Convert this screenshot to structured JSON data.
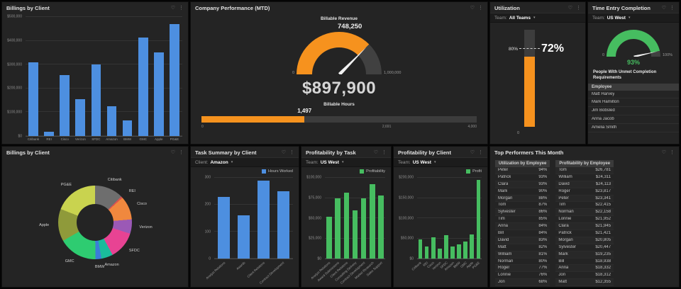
{
  "icons": {
    "favorite": "♡",
    "menu": "⋮",
    "caret": "▾"
  },
  "colors": {
    "page_bg": "#050505",
    "panel_bg": "#242424",
    "accent_blue": "#4d8fe0",
    "accent_orange": "#f6921e",
    "accent_green": "#46bd60"
  },
  "panels": {
    "billings_bar": {
      "title": "Billings by Client"
    },
    "company_performance": {
      "title": "Company Performance (MTD)",
      "gauge_title": "Billable Revenue",
      "gauge_value": "748,250",
      "big_value": "$897,900",
      "hours_title": "Billable Hours"
    },
    "utilization": {
      "title": "Utilization",
      "filter": {
        "label": "Team:",
        "value": "All Teams"
      }
    },
    "time_entry": {
      "title": "Time Entry Completion",
      "filter": {
        "label": "Team:",
        "value": "US West"
      },
      "value": "93%",
      "subheading": "People With Unmet Completion Requirements"
    },
    "billings_donut": {
      "title": "Billings by Client"
    },
    "task_summary": {
      "title": "Task Summary by Client",
      "filter": {
        "label": "Client:",
        "value": "Amazon"
      },
      "legend": "Hours Worked"
    },
    "profit_task": {
      "title": "Profitability by Task",
      "filter": {
        "label": "Team:",
        "value": "US West"
      },
      "legend": "Profitability"
    },
    "profit_client": {
      "title": "Profitability by Client",
      "filter": {
        "label": "Team:",
        "value": "US West"
      },
      "legend": "Profit"
    },
    "top_performers": {
      "title": "Top Performers This Month"
    }
  },
  "chart_data": [
    {
      "id": "billings_bar",
      "type": "bar",
      "title": "Billings by Client",
      "categories": [
        "Citibank",
        "REI",
        "Cisco",
        "Verizon",
        "SFDC",
        "Amazon",
        "BMW",
        "GMC",
        "Apple",
        "PG&E"
      ],
      "values": [
        310000,
        18000,
        255000,
        155000,
        300000,
        125000,
        65000,
        415000,
        350000,
        470000
      ],
      "ymax": 500000,
      "yticks": [
        "$0",
        "$100,000",
        "$200,000",
        "$300,000",
        "$400,000",
        "$500,000"
      ],
      "color": "#4d8fe0",
      "rotate_labels": false
    },
    {
      "id": "billable_revenue_gauge",
      "type": "gauge",
      "title": "Billable Revenue",
      "value": 748250,
      "min": 0,
      "max": 1000000,
      "min_label": "0",
      "max_label": "1,000,000",
      "value_label": "748,250",
      "color": "#f6921e"
    },
    {
      "id": "billable_hours",
      "type": "progress",
      "title": "Billable Hours",
      "value": 1497,
      "max": 4000,
      "value_label": "1,497",
      "ticks": [
        {
          "label": "0",
          "pos": 0
        },
        {
          "label": "2,691",
          "pos": 0.673
        },
        {
          "label": "4,000",
          "pos": 1
        }
      ],
      "color": "#f6921e"
    },
    {
      "id": "utilization_bullet",
      "type": "bullet",
      "title": "Utilization",
      "value": 72,
      "max": 100,
      "value_label": "72%",
      "threshold": 80,
      "threshold_label": "80%",
      "min_label": "0",
      "color": "#f6921e"
    },
    {
      "id": "time_entry_gauge",
      "type": "gauge",
      "title": "Time Entry Completion",
      "value": 93,
      "min": 0,
      "max": 100,
      "min_label": "0",
      "max_label": "100%",
      "color": "#46bd60"
    },
    {
      "id": "unmet_list",
      "type": "table",
      "header": "Employee",
      "rows": [
        [
          "Matt Harvey"
        ],
        [
          "Mark Hamilton"
        ],
        [
          "Jim Bobsled"
        ],
        [
          "Anna Jacob"
        ],
        [
          "Amelia Smith"
        ]
      ]
    },
    {
      "id": "billings_donut",
      "type": "pie",
      "title": "Billings by Client",
      "categories": [
        "Citibank",
        "REI",
        "Cisco",
        "Verizon",
        "SFDC",
        "Amazon",
        "BMW",
        "GMC",
        "Apple",
        "PG&E"
      ],
      "values": [
        310000,
        18000,
        255000,
        155000,
        300000,
        125000,
        65000,
        415000,
        350000,
        470000
      ],
      "colors": [
        "#6e6e6e",
        "#d9534f",
        "#f0883e",
        "#9b59b6",
        "#e84393",
        "#1abc9c",
        "#3b7dd8",
        "#2ecc71",
        "#8f9a3a",
        "#c9d34f"
      ]
    },
    {
      "id": "task_summary",
      "type": "bar",
      "title": "Task Summary by Client",
      "legend": "Hours Worked",
      "categories": [
        "Analyst Relations",
        "Awards",
        "Client Relations",
        "Contract Development"
      ],
      "values": [
        230,
        160,
        290,
        250
      ],
      "ymax": 300,
      "yticks": [
        "0",
        "100",
        "200",
        "300"
      ],
      "color": "#4d8fe0",
      "rotate_labels": true
    },
    {
      "id": "profit_task",
      "type": "bar",
      "title": "Profitability by Task",
      "legend": "Profitability",
      "categories": [
        "Analyst Relations",
        "Award Submissions",
        "Client Relations",
        "Consulting Delivery",
        "Contract Development",
        "Market Research",
        "Sales Support"
      ],
      "values": [
        52000,
        75000,
        82000,
        60000,
        75000,
        92000,
        78000
      ],
      "ymax": 100000,
      "yticks": [
        "$0",
        "$25,000",
        "$50,000",
        "$75,000",
        "$100,000"
      ],
      "color": "#46bd60",
      "rotate_labels": true
    },
    {
      "id": "profit_client",
      "type": "bar",
      "title": "Profitability by Client",
      "legend": "Profit",
      "categories": [
        "Citibank",
        "REI",
        "Cisco",
        "Verizon",
        "SFDC",
        "Amazon",
        "BMW",
        "GMC",
        "Apple",
        "PG&E"
      ],
      "values": [
        48000,
        30000,
        52000,
        25000,
        58000,
        30000,
        35000,
        42000,
        60000,
        195000
      ],
      "ymax": 200000,
      "yticks": [
        "$0",
        "$50,000",
        "$100,000",
        "$150,000",
        "$200,000"
      ],
      "color": "#46bd60",
      "rotate_labels": true
    },
    {
      "id": "top_utilization",
      "type": "table",
      "header": "Utilization by Employee",
      "rows": [
        [
          "Peter",
          "94%"
        ],
        [
          "Patrick",
          "93%"
        ],
        [
          "Clara",
          "93%"
        ],
        [
          "Mark",
          "90%"
        ],
        [
          "Morgan",
          "88%"
        ],
        [
          "Tom",
          "87%"
        ],
        [
          "Sylvester",
          "86%"
        ],
        [
          "Tim",
          "85%"
        ],
        [
          "Anna",
          "84%"
        ],
        [
          "Bill",
          "84%"
        ],
        [
          "David",
          "83%"
        ],
        [
          "Matt",
          "82%"
        ],
        [
          "William",
          "81%"
        ],
        [
          "Norman",
          "80%"
        ],
        [
          "Roger",
          "77%"
        ],
        [
          "Lonnie",
          "76%"
        ],
        [
          "Jon",
          "68%"
        ]
      ]
    },
    {
      "id": "top_profitability",
      "type": "table",
      "header": "Profitability by Employee",
      "rows": [
        [
          "Tom",
          "$26,781"
        ],
        [
          "William",
          "$24,311"
        ],
        [
          "David",
          "$24,113"
        ],
        [
          "Roger",
          "$23,817"
        ],
        [
          "Peter",
          "$23,341"
        ],
        [
          "Tim",
          "$22,415"
        ],
        [
          "Norman",
          "$22,158"
        ],
        [
          "Lonnie",
          "$21,952"
        ],
        [
          "Clara",
          "$21,945"
        ],
        [
          "Patrick",
          "$21,421"
        ],
        [
          "Morgan",
          "$20,805"
        ],
        [
          "Sylvester",
          "$20,447"
        ],
        [
          "Mark",
          "$19,235"
        ],
        [
          "Bill",
          "$18,938"
        ],
        [
          "Anna",
          "$18,332"
        ],
        [
          "Jon",
          "$18,312"
        ],
        [
          "Matt",
          "$12,355"
        ]
      ]
    }
  ]
}
